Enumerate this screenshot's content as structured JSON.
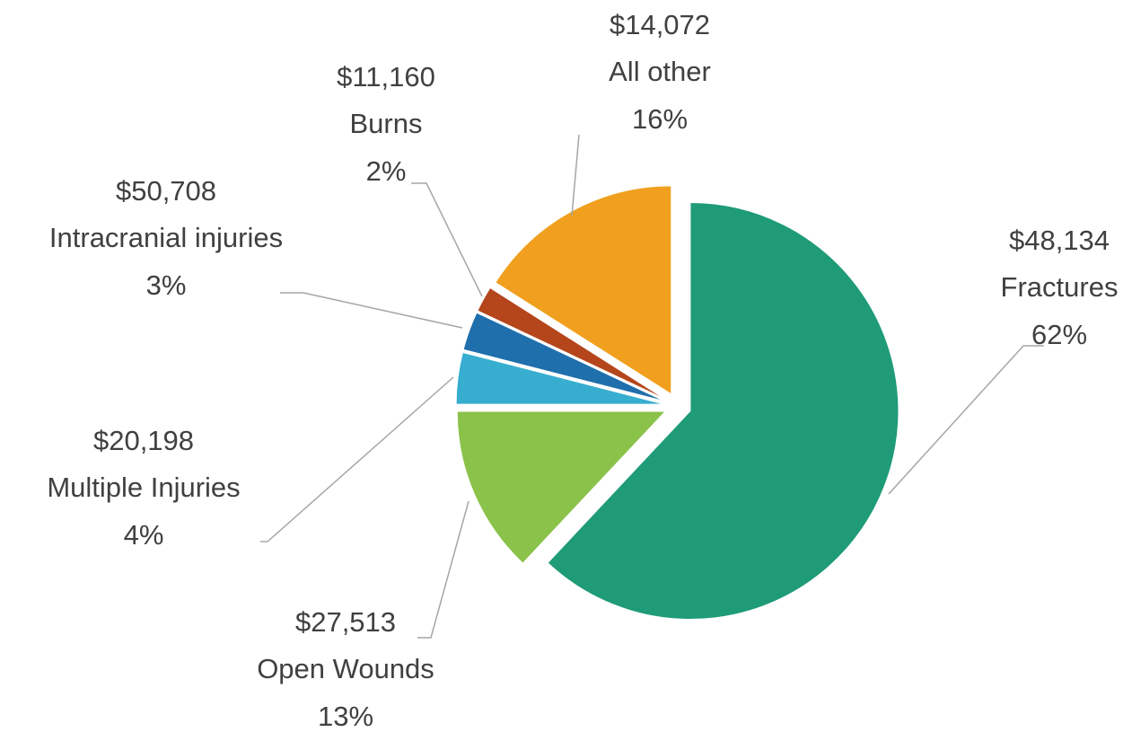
{
  "chart_data": {
    "type": "pie",
    "categories": [
      "Fractures",
      "Open Wounds",
      "Multiple Injuries",
      "Intracranial injuries",
      "Burns",
      "All other"
    ],
    "values": [
      62,
      13,
      4,
      3,
      2,
      16
    ],
    "value_labels": [
      "62%",
      "13%",
      "4%",
      "3%",
      "2%",
      "16%"
    ],
    "amounts": [
      "$48,134",
      "$27,513",
      "$20,198",
      "$50,708",
      "$11,160",
      "$14,072"
    ],
    "colors": [
      "#1f9b78",
      "#8bc24a",
      "#37aecf",
      "#1f6fad",
      "#b5451b",
      "#f0a01e"
    ]
  }
}
